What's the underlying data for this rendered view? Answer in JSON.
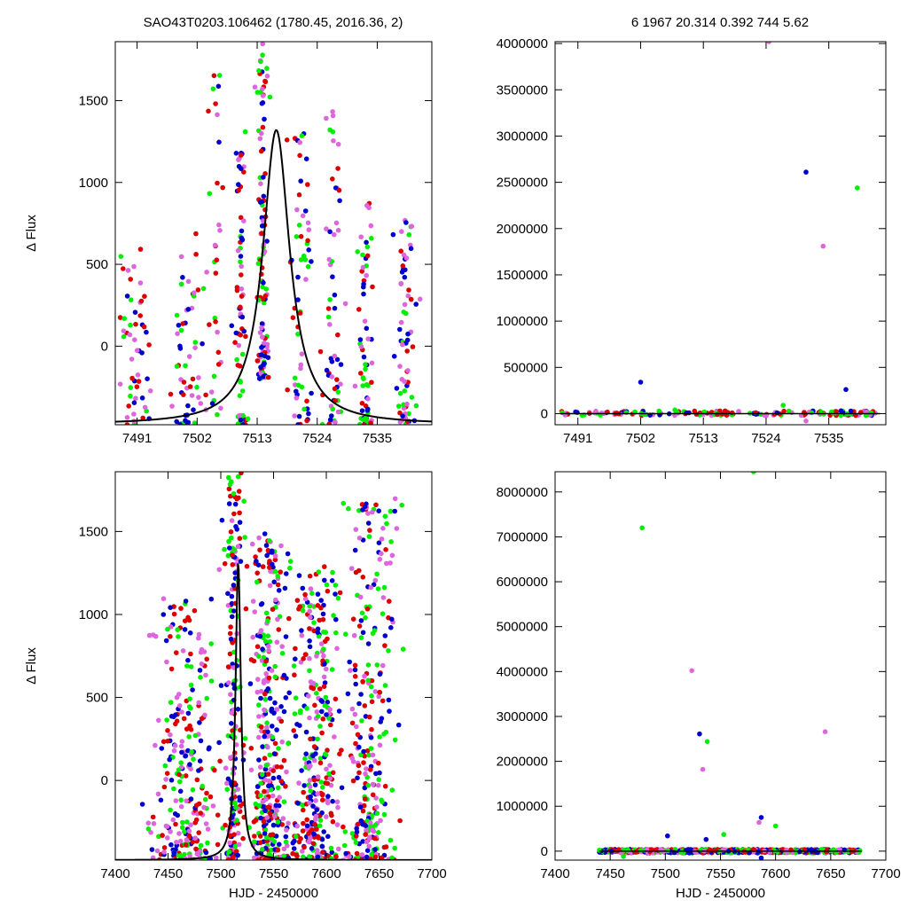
{
  "header": {
    "left_title": "SAO43T0203.106462 (1780.45, 2016.36,    2)",
    "right_title": "6   1967   20.314   0.392   744   5.62"
  },
  "colors": {
    "series": [
      "#0000cc",
      "#dd0000",
      "#00ee00",
      "#dd66dd"
    ],
    "fit": "#000000"
  },
  "chart_data": [
    {
      "name": "zoom-flux",
      "type": "scatter",
      "title": "",
      "xlabel": "",
      "ylabel": "Δ Flux",
      "xlim": [
        7487,
        7545
      ],
      "ylim": [
        -480,
        1860
      ],
      "xticks": [
        7491,
        7502,
        7513,
        7524,
        7535
      ],
      "yticks": [
        0,
        500,
        1000,
        1500
      ],
      "clusters": [
        {
          "center": 7491,
          "width": 2.5,
          "count": 55,
          "ylo": -480,
          "yhi": 600
        },
        {
          "center": 7500,
          "width": 2.5,
          "count": 55,
          "ylo": -480,
          "yhi": 700
        },
        {
          "center": 7505,
          "width": 1.5,
          "count": 35,
          "ylo": -480,
          "yhi": 1800
        },
        {
          "center": 7510,
          "width": 0.8,
          "count": 70,
          "ylo": -480,
          "yhi": 1400
        },
        {
          "center": 7514,
          "width": 0.8,
          "count": 120,
          "ylo": -200,
          "yhi": 1860
        },
        {
          "center": 7521,
          "width": 2,
          "count": 60,
          "ylo": -480,
          "yhi": 1300
        },
        {
          "center": 7527,
          "width": 1.5,
          "count": 60,
          "ylo": -480,
          "yhi": 1500
        },
        {
          "center": 7533,
          "width": 1.2,
          "count": 70,
          "ylo": -480,
          "yhi": 900
        },
        {
          "center": 7540,
          "width": 1.5,
          "count": 70,
          "ylo": -480,
          "yhi": 800
        }
      ],
      "fit_curve": {
        "type": "lorentzian",
        "x0": 7516.5,
        "fwhm": 6,
        "amplitude": 1800,
        "baseline": -480
      }
    },
    {
      "name": "zoom-full-range",
      "type": "scatter",
      "title": "",
      "xlabel": "",
      "ylabel": "",
      "xlim": [
        7487,
        7545
      ],
      "ylim": [
        -120000,
        4020000
      ],
      "xticks": [
        7491,
        7502,
        7513,
        7524,
        7535
      ],
      "yticks": [
        0,
        500000,
        1000000,
        1500000,
        2000000,
        2500000,
        3000000,
        3500000,
        4000000
      ],
      "baseline_band": {
        "xlo": 7488,
        "xhi": 7544,
        "count": 160,
        "ylo": -20000,
        "yhi": 30000
      },
      "outliers": [
        {
          "x": 7502,
          "y": 340000,
          "series": 0
        },
        {
          "x": 7508,
          "y": 40000,
          "series": 2
        },
        {
          "x": 7527,
          "y": 90000,
          "series": 2
        },
        {
          "x": 7524.5,
          "y": 4020000,
          "series": 3
        },
        {
          "x": 7531,
          "y": 2610000,
          "series": 0
        },
        {
          "x": 7534,
          "y": 1810000,
          "series": 3
        },
        {
          "x": 7538,
          "y": 260000,
          "series": 0
        },
        {
          "x": 7540,
          "y": 2440000,
          "series": 2
        },
        {
          "x": 7531,
          "y": -80000,
          "series": 3
        }
      ]
    },
    {
      "name": "full-flux",
      "type": "scatter",
      "title": "",
      "xlabel": "HJD - 2450000",
      "ylabel": "Δ Flux",
      "xlim": [
        7400,
        7700
      ],
      "ylim": [
        -480,
        1860
      ],
      "xticks": [
        7400,
        7450,
        7500,
        7550,
        7600,
        7650,
        7700
      ],
      "yticks": [
        0,
        500,
        1000,
        1500
      ],
      "clusters": [
        {
          "center": 7465,
          "width": 25,
          "count": 260,
          "ylo": -480,
          "yhi": 1100
        },
        {
          "center": 7512,
          "width": 6,
          "count": 200,
          "ylo": -480,
          "yhi": 1860
        },
        {
          "center": 7545,
          "width": 15,
          "count": 350,
          "ylo": -480,
          "yhi": 1500
        },
        {
          "center": 7590,
          "width": 18,
          "count": 320,
          "ylo": -480,
          "yhi": 1300
        },
        {
          "center": 7640,
          "width": 20,
          "count": 280,
          "ylo": -480,
          "yhi": 1700
        }
      ],
      "fit_curve": {
        "type": "lorentzian",
        "x0": 7516.5,
        "fwhm": 6,
        "amplitude": 1800,
        "baseline": -480
      }
    },
    {
      "name": "full-range",
      "type": "scatter",
      "title": "",
      "xlabel": "HJD - 2450000",
      "ylabel": "",
      "xlim": [
        7400,
        7700
      ],
      "ylim": [
        -200000,
        8450000
      ],
      "xticks": [
        7400,
        7450,
        7500,
        7550,
        7600,
        7650,
        7700
      ],
      "yticks": [
        0,
        1000000,
        2000000,
        3000000,
        4000000,
        5000000,
        6000000,
        7000000,
        8000000
      ],
      "baseline_band": {
        "xlo": 7440,
        "xhi": 7678,
        "count": 600,
        "ylo": -40000,
        "yhi": 40000
      },
      "outliers": [
        {
          "x": 7479,
          "y": 7200000,
          "series": 2
        },
        {
          "x": 7502,
          "y": 340000,
          "series": 0
        },
        {
          "x": 7524,
          "y": 4020000,
          "series": 3
        },
        {
          "x": 7531,
          "y": 2610000,
          "series": 0
        },
        {
          "x": 7534,
          "y": 1820000,
          "series": 3
        },
        {
          "x": 7538,
          "y": 2440000,
          "series": 2
        },
        {
          "x": 7537,
          "y": 260000,
          "series": 0
        },
        {
          "x": 7553,
          "y": 370000,
          "series": 2
        },
        {
          "x": 7580,
          "y": 8450000,
          "series": 2
        },
        {
          "x": 7587,
          "y": 750000,
          "series": 0
        },
        {
          "x": 7585,
          "y": 640000,
          "series": 3
        },
        {
          "x": 7600,
          "y": 560000,
          "series": 2
        },
        {
          "x": 7645,
          "y": 2660000,
          "series": 3
        },
        {
          "x": 7462,
          "y": -120000,
          "series": 2
        },
        {
          "x": 7587,
          "y": -150000,
          "series": 0
        }
      ]
    }
  ]
}
